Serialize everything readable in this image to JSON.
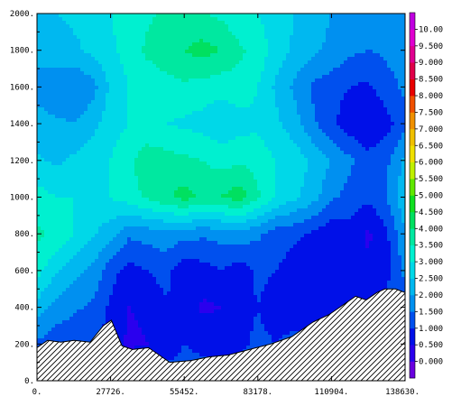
{
  "chart_data": {
    "type": "heatmap",
    "title": "",
    "xlabel": "",
    "ylabel": "",
    "xlim": [
      0,
      138630
    ],
    "ylim": [
      0,
      2000
    ],
    "x_tick_labels": [
      "0.",
      "27726.",
      "55452.",
      "83178.",
      "110904.",
      "138630."
    ],
    "x_ticks": [
      0,
      27726,
      55452,
      83178,
      110904,
      138630
    ],
    "y_tick_labels": [
      "0.",
      "200.",
      "400.",
      "600.",
      "800.",
      "1000.",
      "1200.",
      "1400.",
      "1600.",
      "1800.",
      "2000."
    ],
    "y_ticks": [
      0,
      200,
      400,
      600,
      800,
      1000,
      1200,
      1400,
      1600,
      1800,
      2000
    ],
    "colorbar": {
      "labels": [
        "0.000",
        "0.500",
        "1.000",
        "1.500",
        "2.000",
        "2.500",
        "3.000",
        "3.500",
        "4.000",
        "4.500",
        "5.000",
        "5.500",
        "6.000",
        "6.500",
        "7.000",
        "7.500",
        "8.000",
        "8.500",
        "9.000",
        "9.500",
        "10.00"
      ],
      "colors": [
        "#6a00e0",
        "#2a00ee",
        "#0010e8",
        "#0050ee",
        "#0090f0",
        "#00b8f0",
        "#00d8e8",
        "#00f0d0",
        "#00e8a0",
        "#00e060",
        "#10e020",
        "#60e800",
        "#c0f000",
        "#f0e000",
        "#f0c000",
        "#f09000",
        "#f05000",
        "#e80000",
        "#e0004a",
        "#e00090",
        "#e000d0",
        "#c000e0"
      ]
    },
    "terrain": {
      "x": [
        0,
        4000,
        9000,
        14000,
        20000,
        25000,
        28000,
        32000,
        36000,
        42000,
        50000,
        58000,
        65000,
        72000,
        80000,
        88000,
        96000,
        104000,
        110000,
        116000,
        120000,
        124000,
        128000,
        131000,
        135000,
        138630
      ],
      "y": [
        180,
        220,
        210,
        220,
        210,
        300,
        330,
        190,
        170,
        180,
        100,
        110,
        130,
        140,
        170,
        200,
        240,
        320,
        360,
        420,
        460,
        440,
        480,
        500,
        500,
        480
      ]
    },
    "field": {
      "x": [
        0,
        6931,
        13863,
        20794,
        27726,
        34657,
        41589,
        48520,
        55452,
        62383,
        69315,
        76246,
        83178,
        90109,
        97041,
        103972,
        110904,
        117835,
        124767,
        131698,
        138630
      ],
      "y": [
        0,
        200,
        400,
        600,
        800,
        1000,
        1200,
        1400,
        1600,
        1800,
        2000
      ],
      "values": [
        [
          1.2,
          1.2,
          1.2,
          1.2,
          1.2,
          1.2,
          1.2,
          1.2,
          1.2,
          1.2,
          1.2,
          1.2,
          1.2,
          1.2,
          1.2,
          1.2,
          1.2,
          1.2,
          1.2,
          1.2,
          1.2
        ],
        [
          1.4,
          1.2,
          1.1,
          1.0,
          0.8,
          0.4,
          0.5,
          0.8,
          1.0,
          0.9,
          0.7,
          0.9,
          1.1,
          1.0,
          1.2,
          1.1,
          1.3,
          1.1,
          1.2,
          1.3,
          1.4
        ],
        [
          2.3,
          1.8,
          1.6,
          1.4,
          0.9,
          0.5,
          0.6,
          0.9,
          1.0,
          0.4,
          0.5,
          0.8,
          1.0,
          0.8,
          0.6,
          0.9,
          0.7,
          0.8,
          1.0,
          1.2,
          1.4
        ],
        [
          3.2,
          2.6,
          2.2,
          1.9,
          1.2,
          0.8,
          1.0,
          1.2,
          0.6,
          0.8,
          1.0,
          0.7,
          1.1,
          1.0,
          0.8,
          0.7,
          0.6,
          0.9,
          0.6,
          0.8,
          1.6
        ],
        [
          3.6,
          3.4,
          3.0,
          2.6,
          2.2,
          1.6,
          1.7,
          1.8,
          1.7,
          1.6,
          1.7,
          1.8,
          1.6,
          1.2,
          1.1,
          0.9,
          0.6,
          0.8,
          0.4,
          0.9,
          2.0
        ],
        [
          3.2,
          3.0,
          3.0,
          2.8,
          3.0,
          3.3,
          3.6,
          3.9,
          4.2,
          3.9,
          4.0,
          4.3,
          3.6,
          3.0,
          2.6,
          2.2,
          1.6,
          1.3,
          1.1,
          1.5,
          2.4
        ],
        [
          2.6,
          2.4,
          2.6,
          2.8,
          3.0,
          3.4,
          3.8,
          3.7,
          3.6,
          3.5,
          3.3,
          3.4,
          3.3,
          3.0,
          2.8,
          2.4,
          2.0,
          1.6,
          1.2,
          1.4,
          2.1
        ],
        [
          2.2,
          2.1,
          2.0,
          2.3,
          2.8,
          3.0,
          3.1,
          3.0,
          2.9,
          2.8,
          2.6,
          2.8,
          2.9,
          2.6,
          2.2,
          1.6,
          1.1,
          0.7,
          0.5,
          0.8,
          1.4
        ],
        [
          1.8,
          1.6,
          1.5,
          1.8,
          2.6,
          3.0,
          3.2,
          3.3,
          3.4,
          3.3,
          3.2,
          3.3,
          3.0,
          2.4,
          1.9,
          1.4,
          1.2,
          1.0,
          0.9,
          1.3,
          1.6
        ],
        [
          2.2,
          2.3,
          2.4,
          2.6,
          2.9,
          3.2,
          3.6,
          3.8,
          4.0,
          4.2,
          4.0,
          3.6,
          3.3,
          2.8,
          2.4,
          2.1,
          1.9,
          1.6,
          1.5,
          1.6,
          1.8
        ],
        [
          2.4,
          2.5,
          2.6,
          2.7,
          3.0,
          3.2,
          3.4,
          3.6,
          3.6,
          3.5,
          3.4,
          3.1,
          3.0,
          2.7,
          2.5,
          2.2,
          2.0,
          1.8,
          1.7,
          1.8,
          2.0
        ]
      ]
    }
  }
}
